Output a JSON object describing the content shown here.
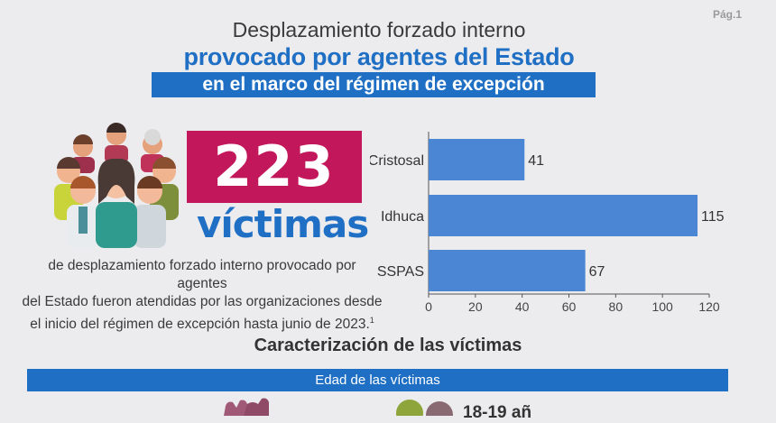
{
  "page": {
    "number_label": "Pág.1"
  },
  "header": {
    "line1": "Desplazamiento forzado interno",
    "line2": "provocado por agentes del Estado",
    "line3": "en el marco del régimen de excepción"
  },
  "highlight": {
    "count": "223",
    "unit": "víctimas",
    "description_lines": [
      "de desplazamiento forzado interno provocado por agentes",
      "del Estado fueron atendidas por las organizaciones desde",
      "el inicio del régimen de excepción hasta junio de 2023."
    ],
    "footnote": "1"
  },
  "chart_data": {
    "type": "bar",
    "orientation": "horizontal",
    "categories": [
      "Cristosal",
      "Idhuca",
      "SSPAS"
    ],
    "values": [
      41,
      115,
      67
    ],
    "data_labels": [
      "41",
      "115",
      "67"
    ],
    "xlim": [
      0,
      120
    ],
    "xticks": [
      "0",
      "20",
      "40",
      "60",
      "80",
      "100",
      "120"
    ],
    "grid": false,
    "bar_color": "#4a86d4"
  },
  "section": {
    "title": "Caracterización de las víctimas",
    "age_bar_label": "Edad de las víctimas",
    "partial_age_label": "18-19 añ"
  },
  "colors": {
    "primary_blue": "#1f6fc5",
    "magenta": "#c2185b",
    "background": "#ececee"
  }
}
